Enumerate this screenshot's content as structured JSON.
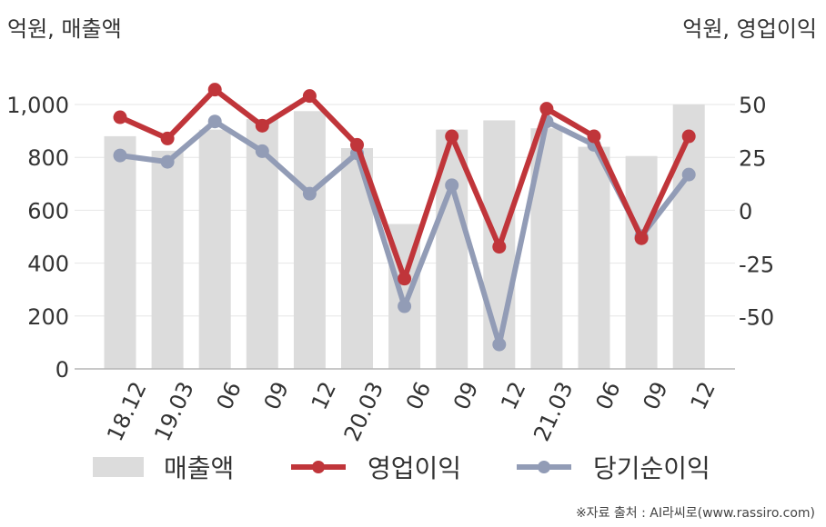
{
  "header": {
    "left_unit": "억원, 매출액",
    "right_unit": "억원, 영업이익"
  },
  "legend": {
    "revenue": "매출액",
    "operating_profit": "영업이익",
    "net_profit": "당기순이익"
  },
  "source": "※자료 출처 : AI라씨로(www.rassiro.com)",
  "colors": {
    "revenue": "#dcdcdc",
    "operating_profit": "#c0353a",
    "net_profit": "#929cb6"
  },
  "chart_data": {
    "type": "bar",
    "categories": [
      "18.12",
      "19.03",
      "06",
      "09",
      "12",
      "20.03",
      "06",
      "09",
      "12",
      "21.03",
      "06",
      "09",
      "12"
    ],
    "series": [
      {
        "name": "매출액",
        "type": "bar",
        "axis": "left",
        "values": [
          880,
          825,
          905,
          945,
          975,
          835,
          548,
          905,
          940,
          910,
          840,
          805,
          1000
        ]
      },
      {
        "name": "영업이익",
        "type": "line",
        "axis": "right",
        "values": [
          44,
          34,
          57,
          40,
          54,
          31,
          -32,
          35,
          -17,
          48,
          35,
          -13,
          35
        ]
      },
      {
        "name": "당기순이익",
        "type": "line",
        "axis": "right",
        "values": [
          26,
          23,
          42,
          28,
          8,
          27,
          -45,
          12,
          -63,
          42,
          31,
          -12,
          17
        ]
      }
    ],
    "left_axis": {
      "ylim": [
        0,
        1000
      ],
      "ticks": [
        "0",
        "200",
        "400",
        "600",
        "800",
        "1,000"
      ]
    },
    "right_axis": {
      "ylim": [
        -74.5,
        50
      ],
      "ticks": [
        "-50",
        "-25",
        "0",
        "25",
        "50"
      ]
    },
    "grid": true,
    "legend_position": "bottom"
  }
}
